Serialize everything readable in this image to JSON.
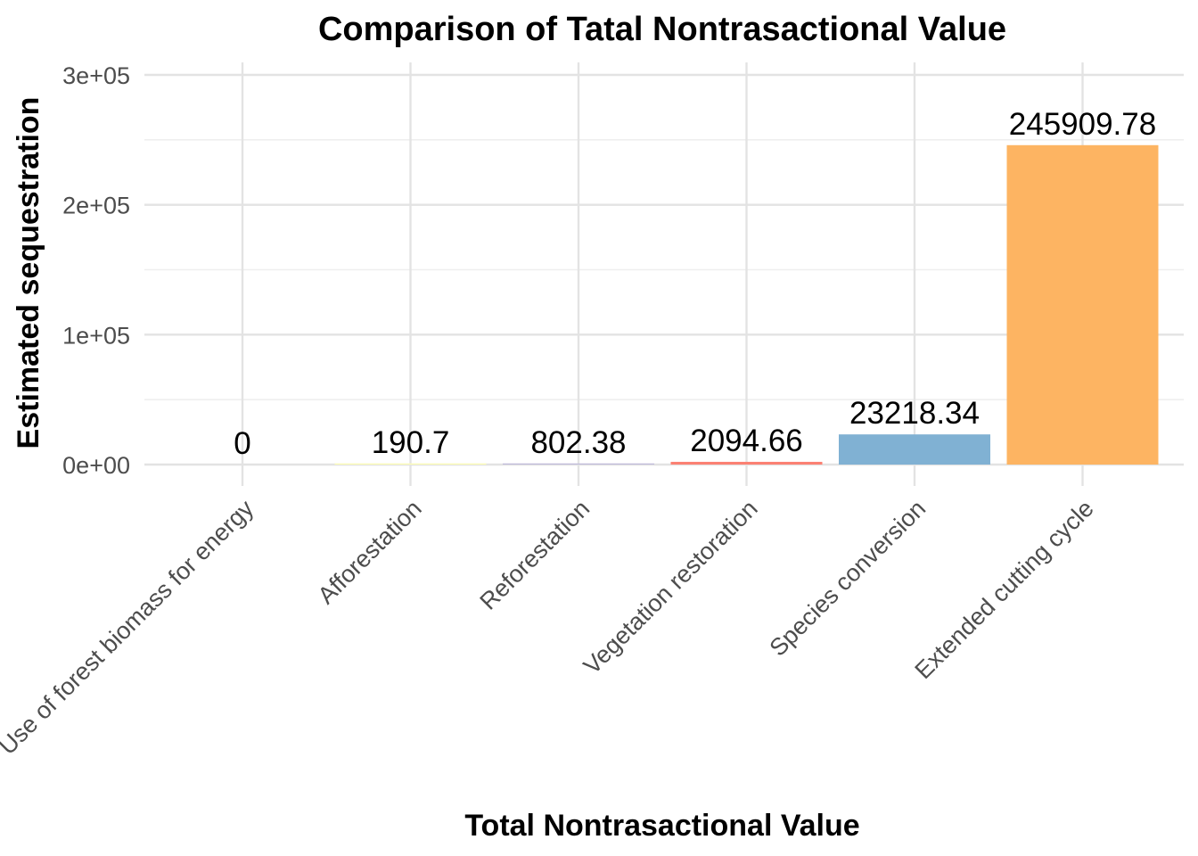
{
  "chart_data": {
    "type": "bar",
    "title": "Comparison of Tatal Nontrasactional Value",
    "xlabel": "Total Nontrasactional Value",
    "ylabel": "Estimated sequestration",
    "categories": [
      "Use of forest biomass for energy",
      "Afforestation",
      "Reforestation",
      "Vegetation restoration",
      "Species conversion",
      "Extended cutting cycle"
    ],
    "values": [
      0,
      190.7,
      802.38,
      2094.66,
      23218.34,
      245909.78
    ],
    "data_labels": [
      "0",
      "190.7",
      "802.38",
      "2094.66",
      "23218.34",
      "245909.78"
    ],
    "colors": [
      "#8dd3c7",
      "#ffffb3",
      "#bebada",
      "#fb8072",
      "#80b1d3",
      "#fdb462"
    ],
    "ylim": [
      0,
      300000
    ],
    "y_ticks": [
      0,
      100000,
      200000,
      300000
    ],
    "y_tick_labels": [
      "0e+00",
      "1e+05",
      "2e+05",
      "3e+05"
    ],
    "grid": true,
    "legend": "none"
  }
}
